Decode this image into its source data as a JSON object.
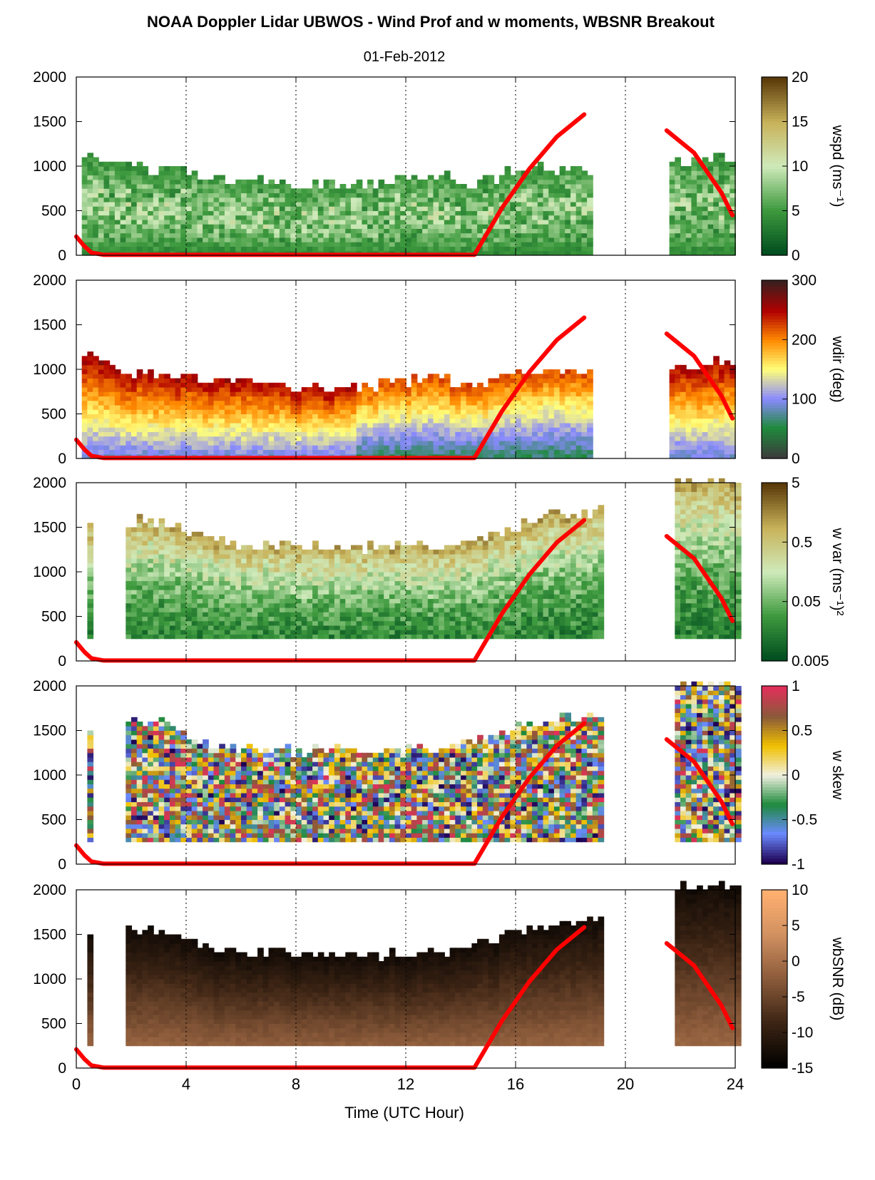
{
  "figure": {
    "title": "NOAA Doppler Lidar UBWOS - Wind Prof and w moments, WBSNR Breakout",
    "subtitle": "01-Feb-2012",
    "xlabel": "Time (UTC Hour)"
  },
  "chart_data": {
    "type": "heatmap",
    "x_range": [
      0,
      24
    ],
    "x_ticks": [
      "0",
      "4",
      "8",
      "12",
      "16",
      "20",
      "24"
    ],
    "y_range": [
      0,
      2000
    ],
    "y_ticks": [
      "0",
      "500",
      "1000",
      "1500",
      "2000"
    ],
    "grid": "vertical dotted lines at 4-hour intervals",
    "sun_line_color": "#ff0000",
    "sun_line": [
      [
        0,
        210
      ],
      [
        0.3,
        100
      ],
      [
        0.55,
        30
      ],
      [
        1,
        5
      ],
      [
        14.5,
        5
      ],
      [
        15.5,
        530
      ],
      [
        16.5,
        970
      ],
      [
        17.5,
        1330
      ],
      [
        18.5,
        1580
      ],
      [
        21.5,
        1400
      ],
      [
        22.5,
        1150
      ],
      [
        23.5,
        700
      ],
      [
        23.9,
        450
      ]
    ],
    "panels": [
      {
        "ylabel": "wspd (ms⁻¹)",
        "colorbar_ticks": [
          "0",
          "5",
          "10",
          "15",
          "20"
        ],
        "colorbar_colors": [
          "#004d1f",
          "#3e9a3e",
          "#cfeaba",
          "#c8b25a",
          "#5a3a0a"
        ],
        "data_periods": [
          [
            0.1,
            18.7
          ],
          [
            21.5,
            23.8
          ]
        ],
        "profile_top_m": [
          [
            0,
            1150
          ],
          [
            2,
            950
          ],
          [
            4,
            900
          ],
          [
            8,
            760
          ],
          [
            11,
            800
          ],
          [
            13,
            900
          ],
          [
            14.5,
            760
          ],
          [
            16,
            950
          ],
          [
            18.5,
            950
          ],
          [
            21.5,
            1000
          ],
          [
            23,
            1050
          ]
        ]
      },
      {
        "ylabel": "wdir (deg)",
        "colorbar_ticks": [
          "0",
          "100",
          "200",
          "300"
        ],
        "colorbar_colors": [
          "#3c3c3c",
          "#1e8a3c",
          "#8a8aff",
          "#ffff7a",
          "#ff8a00",
          "#b00000",
          "#3c1e1e"
        ],
        "data_periods": [
          [
            0.1,
            18.7
          ],
          [
            21.5,
            23.8
          ]
        ],
        "profile_top_m": [
          [
            0,
            1150
          ],
          [
            2,
            950
          ],
          [
            4,
            900
          ],
          [
            8,
            760
          ],
          [
            11,
            800
          ],
          [
            13,
            900
          ],
          [
            14.5,
            760
          ],
          [
            16,
            950
          ],
          [
            18.5,
            950
          ],
          [
            21.5,
            1000
          ],
          [
            23,
            1050
          ]
        ]
      },
      {
        "ylabel": "w var (ms⁻¹)²",
        "colorbar_ticks": [
          "0.005",
          "0.05",
          "0.5",
          "5"
        ],
        "colorbar_colors": [
          "#004d1f",
          "#3e9a3e",
          "#cfeaba",
          "#c8b25a",
          "#5a3a0a"
        ],
        "data_periods": [
          [
            0.3,
            0.6
          ],
          [
            1.7,
            19
          ],
          [
            21.7,
            24
          ]
        ],
        "profile_top_m": [
          [
            1.7,
            1550
          ],
          [
            3,
            1550
          ],
          [
            5,
            1300
          ],
          [
            8,
            1250
          ],
          [
            13,
            1250
          ],
          [
            15,
            1400
          ],
          [
            17,
            1600
          ],
          [
            19,
            1650
          ],
          [
            21.7,
            2000
          ],
          [
            24,
            2000
          ]
        ]
      },
      {
        "ylabel": "w skew",
        "colorbar_ticks": [
          "-1",
          "-0.5",
          "0",
          "0.5",
          "1"
        ],
        "colorbar_colors": [
          "#1e0050",
          "#6a8aff",
          "#1e8a3c",
          "#f0f0e0",
          "#f0c000",
          "#8a5a3a",
          "#e0305a"
        ],
        "data_periods": [
          [
            0.3,
            0.6
          ],
          [
            1.7,
            19
          ],
          [
            21.7,
            24
          ]
        ],
        "profile_top_m": [
          [
            1.7,
            1550
          ],
          [
            3,
            1550
          ],
          [
            5,
            1300
          ],
          [
            8,
            1250
          ],
          [
            13,
            1250
          ],
          [
            15,
            1400
          ],
          [
            17,
            1600
          ],
          [
            19,
            1650
          ],
          [
            21.7,
            2000
          ],
          [
            24,
            2000
          ]
        ]
      },
      {
        "ylabel": "wbSNR (dB)",
        "colorbar_ticks": [
          "-15",
          "-10",
          "-5",
          "0",
          "5",
          "10"
        ],
        "colorbar_colors": [
          "#000000",
          "#3c2414",
          "#8a5a3a",
          "#d09060",
          "#ffb070"
        ],
        "data_periods": [
          [
            0.3,
            0.6
          ],
          [
            1.7,
            19
          ],
          [
            21.7,
            24
          ]
        ],
        "profile_top_m": [
          [
            1.7,
            1550
          ],
          [
            3,
            1550
          ],
          [
            5,
            1300
          ],
          [
            8,
            1250
          ],
          [
            13,
            1250
          ],
          [
            15,
            1400
          ],
          [
            17,
            1600
          ],
          [
            19,
            1650
          ],
          [
            21.7,
            2000
          ],
          [
            24,
            2000
          ]
        ]
      }
    ]
  }
}
